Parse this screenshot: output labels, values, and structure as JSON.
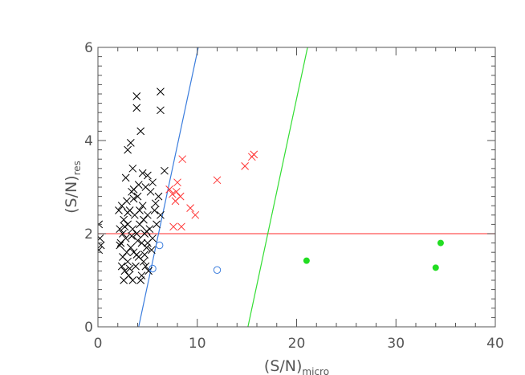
{
  "chart_data": {
    "type": "scatter",
    "title": "",
    "xlabel": "(S/N)",
    "xlabel_sub": "micro",
    "ylabel": "(S/N)",
    "ylabel_sub": "res",
    "xlim": [
      0,
      40
    ],
    "ylim": [
      0,
      6
    ],
    "x_ticks": [
      0,
      10,
      20,
      30,
      40
    ],
    "y_ticks": [
      0,
      2,
      4,
      6
    ],
    "colors": {
      "black_cross": "#000000",
      "red_cross": "#ff3333",
      "blue_circle": "#3b7ddd",
      "green_dot": "#22dd22",
      "red_line": "#ff5555",
      "blue_line": "#3b7ddd",
      "green_line": "#33dd33",
      "axis": "#555555"
    },
    "series": [
      {
        "marker": "cross",
        "color": "#000000",
        "points": [
          [
            0.1,
            2.2
          ],
          [
            0.2,
            1.9
          ],
          [
            0.3,
            1.75
          ],
          [
            0.1,
            1.65
          ],
          [
            2.1,
            2.5
          ],
          [
            2.2,
            2.1
          ],
          [
            2.3,
            1.8
          ],
          [
            2.4,
            2.6
          ],
          [
            2.5,
            1.5
          ],
          [
            2.5,
            2.0
          ],
          [
            2.6,
            2.3
          ],
          [
            2.7,
            1.2
          ],
          [
            2.8,
            1.9
          ],
          [
            2.9,
            2.7
          ],
          [
            3.0,
            1.4
          ],
          [
            3.0,
            2.2
          ],
          [
            3.1,
            1.1
          ],
          [
            3.2,
            2.5
          ],
          [
            3.3,
            1.7
          ],
          [
            3.4,
            2.9
          ],
          [
            3.5,
            1.0
          ],
          [
            3.5,
            2.1
          ],
          [
            3.6,
            1.6
          ],
          [
            3.7,
            2.4
          ],
          [
            3.8,
            1.3
          ],
          [
            3.9,
            2.0
          ],
          [
            4.0,
            2.8
          ],
          [
            4.1,
            1.5
          ],
          [
            4.2,
            2.2
          ],
          [
            4.3,
            1.0
          ],
          [
            4.4,
            1.8
          ],
          [
            4.5,
            2.6
          ],
          [
            4.6,
            1.4
          ],
          [
            4.7,
            2.0
          ],
          [
            4.8,
            3.0
          ],
          [
            4.9,
            1.7
          ],
          [
            5.0,
            2.4
          ],
          [
            5.1,
            1.2
          ],
          [
            5.2,
            2.1
          ],
          [
            5.3,
            2.9
          ],
          [
            5.5,
            1.9
          ],
          [
            5.7,
            2.5
          ],
          [
            5.9,
            2.2
          ],
          [
            6.1,
            2.8
          ],
          [
            6.3,
            2.4
          ],
          [
            2.4,
            1.3
          ],
          [
            2.6,
            1.0
          ],
          [
            2.9,
            1.6
          ],
          [
            3.2,
            1.25
          ],
          [
            3.6,
            2.75
          ],
          [
            3.9,
            1.55
          ],
          [
            4.2,
            2.5
          ],
          [
            4.4,
            1.1
          ],
          [
            4.6,
            2.3
          ],
          [
            4.8,
            1.3
          ],
          [
            5.0,
            1.8
          ],
          [
            3.0,
            2.45
          ],
          [
            2.2,
            1.75
          ],
          [
            2.8,
            3.2
          ],
          [
            3.5,
            3.4
          ],
          [
            3.0,
            3.8
          ],
          [
            3.3,
            3.95
          ],
          [
            4.3,
            4.2
          ],
          [
            3.9,
            4.7
          ],
          [
            3.9,
            4.95
          ],
          [
            6.3,
            4.65
          ],
          [
            6.3,
            5.05
          ],
          [
            4.5,
            3.3
          ],
          [
            5.0,
            3.25
          ],
          [
            6.7,
            3.35
          ],
          [
            5.5,
            3.1
          ],
          [
            4.1,
            3.05
          ],
          [
            3.6,
            2.95
          ],
          [
            5.8,
            2.65
          ],
          [
            4.9,
            2.05
          ],
          [
            5.4,
            1.65
          ],
          [
            4.0,
            1.85
          ],
          [
            4.7,
            1.55
          ],
          [
            3.4,
            1.95
          ],
          [
            2.7,
            2.15
          ]
        ]
      },
      {
        "marker": "cross",
        "color": "#ff3333",
        "points": [
          [
            7.2,
            2.95
          ],
          [
            7.5,
            2.85
          ],
          [
            7.8,
            2.7
          ],
          [
            8.0,
            3.1
          ],
          [
            8.3,
            2.8
          ],
          [
            7.6,
            2.15
          ],
          [
            8.4,
            2.15
          ],
          [
            9.3,
            2.55
          ],
          [
            9.8,
            2.4
          ],
          [
            8.5,
            3.6
          ],
          [
            12.0,
            3.15
          ],
          [
            14.8,
            3.45
          ],
          [
            15.5,
            3.65
          ],
          [
            15.7,
            3.7
          ],
          [
            7.9,
            2.9
          ]
        ]
      },
      {
        "marker": "circle",
        "color": "#3b7ddd",
        "points": [
          [
            6.2,
            1.75
          ],
          [
            5.5,
            1.25
          ],
          [
            12.0,
            1.22
          ]
        ]
      },
      {
        "marker": "dot",
        "color": "#22dd22",
        "points": [
          [
            21.0,
            1.42
          ],
          [
            34.0,
            1.27
          ],
          [
            34.5,
            1.8
          ]
        ]
      }
    ],
    "lines": [
      {
        "color": "#ff5555",
        "points": [
          [
            0,
            2.0
          ],
          [
            40,
            2.0
          ]
        ]
      },
      {
        "color": "#3b7ddd",
        "points": [
          [
            4.1,
            0
          ],
          [
            10.1,
            6
          ]
        ]
      },
      {
        "color": "#33dd33",
        "points": [
          [
            15.1,
            0
          ],
          [
            21.1,
            6
          ]
        ]
      }
    ],
    "legend": "none",
    "grid": false
  }
}
